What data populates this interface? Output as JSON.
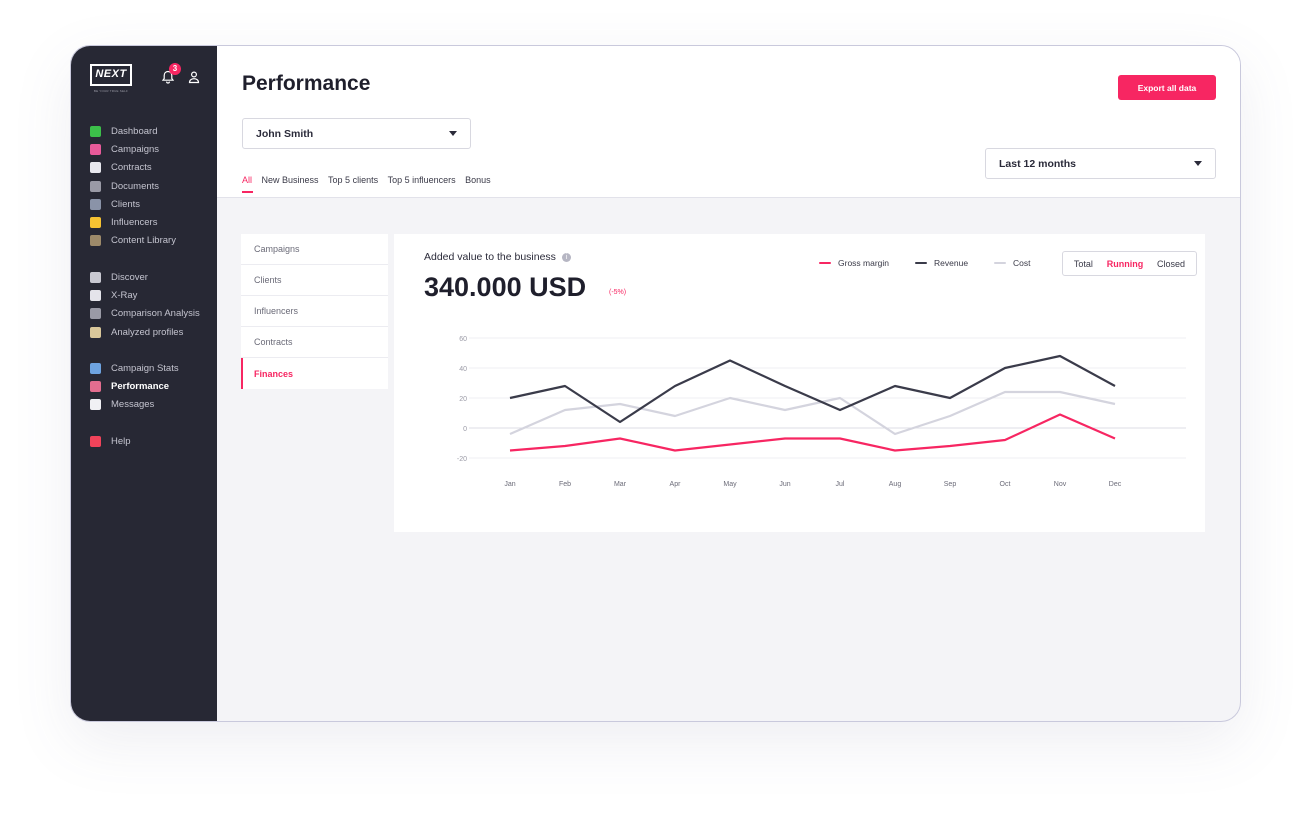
{
  "sidebar": {
    "logo_text": "NEXT",
    "logo_sub": "BE YOUR TRUE SELF",
    "notification_count": "3",
    "groups": [
      [
        {
          "label": "Dashboard",
          "icon": "check-icon",
          "color": "#3cbf4a"
        },
        {
          "label": "Campaigns",
          "icon": "rocket-icon",
          "color": "#e85a9a"
        },
        {
          "label": "Contracts",
          "icon": "page-icon",
          "color": "#e8e8ee"
        },
        {
          "label": "Documents",
          "icon": "paperclip-icon",
          "color": "#9a9aa6"
        },
        {
          "label": "Clients",
          "icon": "building-icon",
          "color": "#8a93a8"
        },
        {
          "label": "Influencers",
          "icon": "sunglasses-icon",
          "color": "#f6c232"
        },
        {
          "label": "Content Library",
          "icon": "camera-icon",
          "color": "#9d8a6a"
        }
      ],
      [
        {
          "label": "Discover",
          "icon": "telescope-icon",
          "color": "#c9c9d2"
        },
        {
          "label": "X-Ray",
          "icon": "magnifier-icon",
          "color": "#e4e4ea"
        },
        {
          "label": "Comparison Analysis",
          "icon": "scale-icon",
          "color": "#9a9aa6"
        },
        {
          "label": "Analyzed profiles",
          "icon": "clipboard-icon",
          "color": "#d9c79a"
        }
      ],
      [
        {
          "label": "Campaign Stats",
          "icon": "bar-chart-icon",
          "color": "#6ea3e0"
        },
        {
          "label": "Performance",
          "icon": "line-chart-icon",
          "color": "#e36d8f",
          "active": true
        },
        {
          "label": "Messages",
          "icon": "speech-bubble-icon",
          "color": "#f0f0f4"
        }
      ],
      [
        {
          "label": "Help",
          "icon": "heart-icon",
          "color": "#f0435a"
        }
      ]
    ]
  },
  "header": {
    "title": "Performance",
    "export_label": "Export all data",
    "user_select": "John Smith",
    "period_select": "Last 12 months",
    "tabs": [
      {
        "label": "All",
        "active": true
      },
      {
        "label": "New Business"
      },
      {
        "label": "Top 5 clients"
      },
      {
        "label": "Top 5 influencers"
      },
      {
        "label": "Bonus"
      }
    ]
  },
  "submenu": [
    {
      "label": "Campaigns"
    },
    {
      "label": "Clients"
    },
    {
      "label": "Influencers"
    },
    {
      "label": "Contracts"
    },
    {
      "label": "Finances",
      "active": true
    }
  ],
  "card": {
    "title": "Added value to the business",
    "value": "340.000 USD",
    "change": "(-5%)",
    "toggle": [
      {
        "label": "Total"
      },
      {
        "label": "Running",
        "active": true
      },
      {
        "label": "Closed"
      }
    ]
  },
  "chart_data": {
    "type": "line",
    "categories": [
      "Jan",
      "Feb",
      "Mar",
      "Apr",
      "May",
      "Jun",
      "Jul",
      "Aug",
      "Sep",
      "Oct",
      "Nov",
      "Dec"
    ],
    "yticks": [
      60,
      40,
      20,
      0,
      -20
    ],
    "ylim": [
      -20,
      60
    ],
    "grid": true,
    "legend": "top",
    "series": [
      {
        "name": "Gross margin",
        "color": "#f72662",
        "values": [
          -15,
          -12,
          -7,
          -15,
          -11,
          -7,
          -7,
          -15,
          -12,
          -8,
          9,
          -7
        ]
      },
      {
        "name": "Revenue",
        "color": "#3a3b4a",
        "values": [
          20,
          28,
          4,
          28,
          45,
          28,
          12,
          28,
          20,
          40,
          48,
          28
        ]
      },
      {
        "name": "Cost",
        "color": "#d4d4de",
        "values": [
          -4,
          12,
          16,
          8,
          20,
          12,
          20,
          -4,
          8,
          24,
          24,
          16
        ]
      }
    ]
  }
}
